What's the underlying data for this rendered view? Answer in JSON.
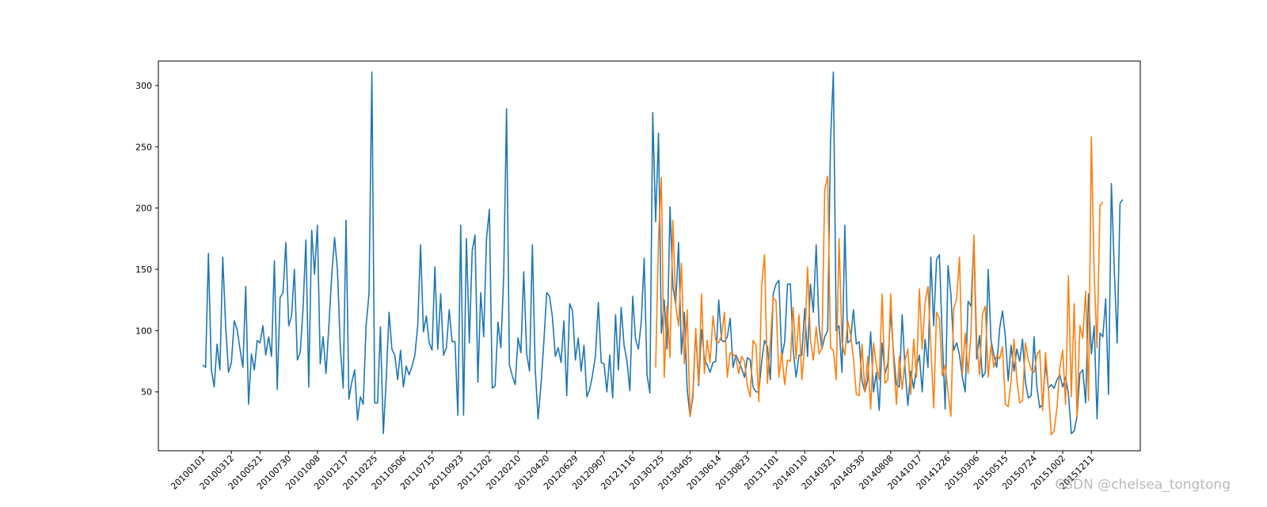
{
  "watermark": "CSDN @chelsea_tongtong",
  "chart_data": {
    "type": "line",
    "title": "",
    "xlabel": "",
    "ylabel": "",
    "grid": false,
    "ylim": [
      2,
      320
    ],
    "yticks": [
      50,
      100,
      150,
      200,
      250,
      300
    ],
    "xtick_labels": [
      "20100101",
      "20100312",
      "20100521",
      "20100730",
      "20101008",
      "20101217",
      "20110225",
      "20110506",
      "20110715",
      "20110923",
      "20111202",
      "20120210",
      "20120420",
      "20120629",
      "20120907",
      "20121116",
      "20130125",
      "20130405",
      "20130614",
      "20130823",
      "20131101",
      "20140110",
      "20140321",
      "20140530",
      "20140808",
      "20141017",
      "20141226",
      "20150306",
      "20150515",
      "20150724",
      "20151002",
      "20151211"
    ],
    "series": [
      {
        "color": "#1f77b4",
        "start_index": 0,
        "values": [
          72,
          70,
          163,
          68,
          54,
          89,
          68,
          160,
          103,
          66,
          74,
          108,
          101,
          85,
          70,
          136,
          40,
          81,
          68,
          92,
          90,
          104,
          80,
          95,
          79,
          157,
          52,
          127,
          131,
          172,
          104,
          112,
          150,
          76,
          82,
          118,
          174,
          54,
          182,
          146,
          186,
          73,
          95,
          65,
          104,
          145,
          176,
          150,
          86,
          53,
          190,
          44,
          58,
          68,
          27,
          46,
          40,
          104,
          130,
          311,
          41,
          41,
          103,
          16,
          60,
          115,
          85,
          80,
          60,
          84,
          54,
          71,
          64,
          71,
          80,
          104,
          170,
          99,
          112,
          90,
          84,
          152,
          85,
          130,
          80,
          86,
          117,
          91,
          91,
          31,
          186,
          31,
          175,
          90,
          165,
          178,
          58,
          131,
          95,
          175,
          199,
          53,
          55,
          107,
          86,
          145,
          281,
          72,
          63,
          56,
          94,
          82,
          148,
          81,
          67,
          170,
          69,
          28,
          56,
          91,
          131,
          128,
          111,
          79,
          86,
          74,
          108,
          47,
          122,
          116,
          76,
          94,
          67,
          88,
          46,
          52,
          64,
          79,
          123,
          74,
          73,
          50,
          80,
          45,
          113,
          68,
          119,
          88,
          75,
          51,
          128,
          93,
          85,
          108,
          159,
          64,
          49,
          278,
          189,
          261,
          98,
          125,
          85,
          201,
          136,
          121,
          172,
          81,
          115,
          52,
          30,
          46,
          100,
          55,
          101,
          77,
          72,
          66,
          74,
          75,
          125,
          92,
          91,
          95,
          110,
          70,
          80,
          75,
          69,
          62,
          78,
          76,
          54,
          50,
          50,
          75,
          92,
          87,
          60,
          130,
          138,
          141,
          78,
          91,
          138,
          138,
          84,
          62,
          80,
          80,
          118,
          79,
          138,
          115,
          170,
          104,
          85,
          95,
          100,
          255,
          311,
          100,
          104,
          66,
          186,
          90,
          92,
          117,
          89,
          91,
          59,
          50,
          60,
          99,
          50,
          66,
          35,
          90,
          65,
          73,
          115,
          82,
          56,
          54,
          113,
          69,
          39,
          67,
          53,
          70,
          80,
          50,
          93,
          70,
          160,
          104,
          158,
          162,
          93,
          36,
          153,
          130,
          84,
          90,
          80,
          62,
          50,
          124,
          120,
          174,
          77,
          96,
          62,
          66,
          150,
          92,
          80,
          70,
          102,
          116,
          95,
          59,
          88,
          67,
          85,
          75,
          93,
          58,
          45,
          47,
          95,
          54,
          37,
          40,
          73,
          53,
          56,
          53,
          60,
          64,
          54,
          62,
          49,
          16,
          18,
          30,
          65,
          68,
          41,
          130,
          81,
          104,
          28,
          98,
          95,
          126,
          48,
          220,
          149,
          90,
          204,
          207
        ]
      },
      {
        "color": "#ff7f0e",
        "start_index": 158,
        "values": [
          70,
          175,
          225,
          62,
          120,
          78,
          190,
          120,
          104,
          155,
          73,
          117,
          30,
          50,
          102,
          57,
          130,
          65,
          92,
          74,
          112,
          92,
          90,
          96,
          115,
          62,
          82,
          81,
          78,
          65,
          79,
          75,
          55,
          46,
          92,
          88,
          42,
          137,
          162,
          57,
          91,
          127,
          124,
          62,
          82,
          56,
          76,
          75,
          119,
          77,
          113,
          60,
          87,
          152,
          93,
          76,
          103,
          81,
          86,
          215,
          226,
          86,
          84,
          60,
          175,
          90,
          80,
          108,
          97,
          78,
          48,
          47,
          89,
          50,
          79,
          36,
          90,
          72,
          60,
          130,
          57,
          60,
          130,
          76,
          40,
          79,
          52,
          76,
          85,
          48,
          93,
          62,
          134,
          85,
          123,
          136,
          86,
          37,
          115,
          110,
          63,
          72,
          50,
          30,
          118,
          126,
          160,
          65,
          98,
          65,
          97,
          178,
          92,
          64,
          113,
          120,
          62,
          88,
          70,
          80,
          77,
          87,
          40,
          38,
          59,
          93,
          60,
          41,
          43,
          90,
          76,
          68,
          66,
          80,
          84,
          35,
          82,
          53,
          15,
          18,
          37,
          70,
          84,
          40,
          145,
          46,
          122,
          30,
          104,
          94,
          132,
          43,
          258,
          145,
          86,
          202,
          205
        ]
      }
    ]
  }
}
